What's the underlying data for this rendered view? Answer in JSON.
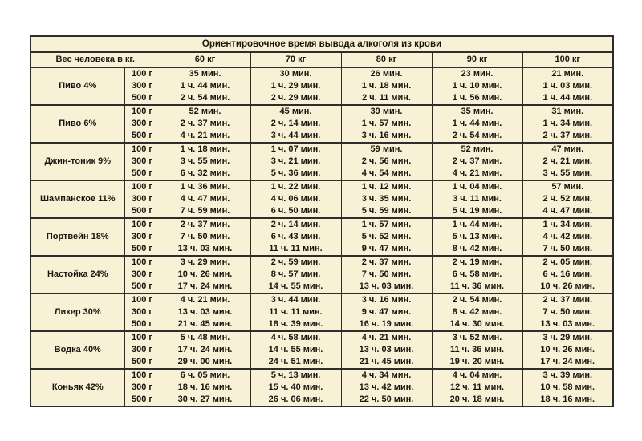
{
  "colors": {
    "page_bg": "#ffffff",
    "table_bg": "#f8f1d6",
    "border": "#2d2d2d",
    "text": "#191610"
  },
  "chart_data": {
    "type": "table",
    "title": "Ориентировочное время вывода алкоголя из крови",
    "corner_header": "Вес человека в кг.",
    "weight_columns": [
      "60 кг",
      "70 кг",
      "80 кг",
      "90 кг",
      "100 кг"
    ],
    "groups": [
      {
        "drink": "Пиво 4%",
        "rows": [
          {
            "amount": "100 г",
            "times": [
              "35 мин.",
              "30 мин.",
              "26 мин.",
              "23 мин.",
              "21 мин."
            ]
          },
          {
            "amount": "300 г",
            "times": [
              "1 ч. 44 мин.",
              "1 ч. 29 мин.",
              "1 ч. 18 мин.",
              "1 ч. 10 мин.",
              "1 ч. 03 мин."
            ]
          },
          {
            "amount": "500 г",
            "times": [
              "2 ч. 54 мин.",
              "2 ч. 29 мин.",
              "2 ч. 11 мин.",
              "1 ч. 56 мин.",
              "1 ч. 44 мин."
            ]
          }
        ]
      },
      {
        "drink": "Пиво 6%",
        "rows": [
          {
            "amount": "100 г",
            "times": [
              "52 мин.",
              "45 мин.",
              "39 мин.",
              "35 мин.",
              "31 мин."
            ]
          },
          {
            "amount": "300 г",
            "times": [
              "2 ч. 37 мин.",
              "2 ч. 14 мин.",
              "1 ч. 57 мин.",
              "1 ч. 44 мин.",
              "1 ч. 34 мин."
            ]
          },
          {
            "amount": "500 г",
            "times": [
              "4 ч. 21 мин.",
              "3 ч. 44 мин.",
              "3 ч. 16 мин.",
              "2 ч. 54 мин.",
              "2 ч. 37 мин."
            ]
          }
        ]
      },
      {
        "drink": "Джин-тоник 9%",
        "rows": [
          {
            "amount": "100 г",
            "times": [
              "1 ч. 18 мин.",
              "1 ч. 07 мин.",
              "59 мин.",
              "52 мин.",
              "47 мин."
            ]
          },
          {
            "amount": "300 г",
            "times": [
              "3 ч. 55 мин.",
              "3 ч. 21 мин.",
              "2 ч. 56 мин.",
              "2 ч. 37 мин.",
              "2 ч. 21 мин."
            ]
          },
          {
            "amount": "500 г",
            "times": [
              "6 ч. 32 мин.",
              "5 ч. 36 мин.",
              "4 ч. 54 мин.",
              "4 ч. 21 мин.",
              "3 ч. 55 мин."
            ]
          }
        ]
      },
      {
        "drink": "Шампанское 11%",
        "rows": [
          {
            "amount": "100 г",
            "times": [
              "1 ч. 36 мин.",
              "1 ч. 22 мин.",
              "1 ч. 12 мин.",
              "1 ч. 04 мин.",
              "57 мин."
            ]
          },
          {
            "amount": "300 г",
            "times": [
              "4 ч. 47 мин.",
              "4 ч. 06 мин.",
              "3 ч. 35 мин.",
              "3 ч. 11 мин.",
              "2 ч. 52 мин."
            ]
          },
          {
            "amount": "500 г",
            "times": [
              "7 ч. 59 мин.",
              "6 ч. 50 мин.",
              "5 ч. 59 мин.",
              "5 ч. 19 мин.",
              "4 ч. 47 мин."
            ]
          }
        ]
      },
      {
        "drink": "Портвейн 18%",
        "rows": [
          {
            "amount": "100 г",
            "times": [
              "2 ч. 37 мин.",
              "2 ч. 14 мин.",
              "1 ч. 57 мин.",
              "1 ч. 44 мин.",
              "1 ч. 34 мин."
            ]
          },
          {
            "amount": "300 г",
            "times": [
              "7 ч. 50 мин.",
              "6 ч. 43 мин.",
              "5 ч. 52 мин.",
              "5 ч. 13 мин.",
              "4 ч. 42 мин."
            ]
          },
          {
            "amount": "500 г",
            "times": [
              "13 ч. 03 мин.",
              "11 ч. 11 мин.",
              "9 ч. 47 мин.",
              "8 ч. 42 мин.",
              "7 ч. 50 мин."
            ]
          }
        ]
      },
      {
        "drink": "Настойка 24%",
        "rows": [
          {
            "amount": "100 г",
            "times": [
              "3 ч. 29 мин.",
              "2 ч. 59 мин.",
              "2 ч. 37 мин.",
              "2 ч. 19 мин.",
              "2 ч. 05 мин."
            ]
          },
          {
            "amount": "300 г",
            "times": [
              "10 ч. 26 мин.",
              "8 ч. 57 мин.",
              "7 ч. 50 мин.",
              "6 ч. 58 мин.",
              "6 ч. 16 мин."
            ]
          },
          {
            "amount": "500 г",
            "times": [
              "17 ч. 24 мин.",
              "14 ч. 55 мин.",
              "13 ч. 03 мин.",
              "11 ч. 36 мин.",
              "10 ч. 26 мин."
            ]
          }
        ]
      },
      {
        "drink": "Ликер 30%",
        "rows": [
          {
            "amount": "100 г",
            "times": [
              "4 ч. 21 мин.",
              "3 ч. 44 мин.",
              "3 ч. 16 мин.",
              "2 ч. 54 мин.",
              "2 ч. 37 мин."
            ]
          },
          {
            "amount": "300 г",
            "times": [
              "13 ч. 03 мин.",
              "11 ч. 11 мин.",
              "9 ч. 47 мин.",
              "8 ч. 42 мин.",
              "7 ч. 50 мин."
            ]
          },
          {
            "amount": "500 г",
            "times": [
              "21 ч. 45 мин.",
              "18 ч. 39 мин.",
              "16 ч. 19 мин.",
              "14 ч. 30 мин.",
              "13 ч. 03 мин."
            ]
          }
        ]
      },
      {
        "drink": "Водка 40%",
        "rows": [
          {
            "amount": "100 г",
            "times": [
              "5 ч. 48 мин.",
              "4 ч. 58 мин.",
              "4 ч. 21 мин.",
              "3 ч. 52 мин.",
              "3 ч. 29 мин."
            ]
          },
          {
            "amount": "300 г",
            "times": [
              "17 ч. 24 мин.",
              "14 ч. 55 мин.",
              "13 ч. 03 мин.",
              "11 ч. 36 мин.",
              "10 ч. 26 мин."
            ]
          },
          {
            "amount": "500 г",
            "times": [
              "29 ч. 00 мин.",
              "24 ч. 51 мин.",
              "21 ч. 45 мин.",
              "19 ч. 20 мин.",
              "17 ч. 24 мин."
            ]
          }
        ]
      },
      {
        "drink": "Коньяк 42%",
        "rows": [
          {
            "amount": "100 г",
            "times": [
              "6 ч. 05 мин.",
              "5 ч. 13 мин.",
              "4 ч. 34 мин.",
              "4 ч. 04 мин.",
              "3 ч. 39 мин."
            ]
          },
          {
            "amount": "300 г",
            "times": [
              "18 ч. 16 мин.",
              "15 ч. 40 мин.",
              "13 ч. 42 мин.",
              "12 ч. 11 мин.",
              "10 ч. 58 мин."
            ]
          },
          {
            "amount": "500 г",
            "times": [
              "30 ч. 27 мин.",
              "26 ч. 06 мин.",
              "22 ч. 50 мин.",
              "20 ч. 18 мин.",
              "18 ч. 16 мин."
            ]
          }
        ]
      }
    ]
  }
}
